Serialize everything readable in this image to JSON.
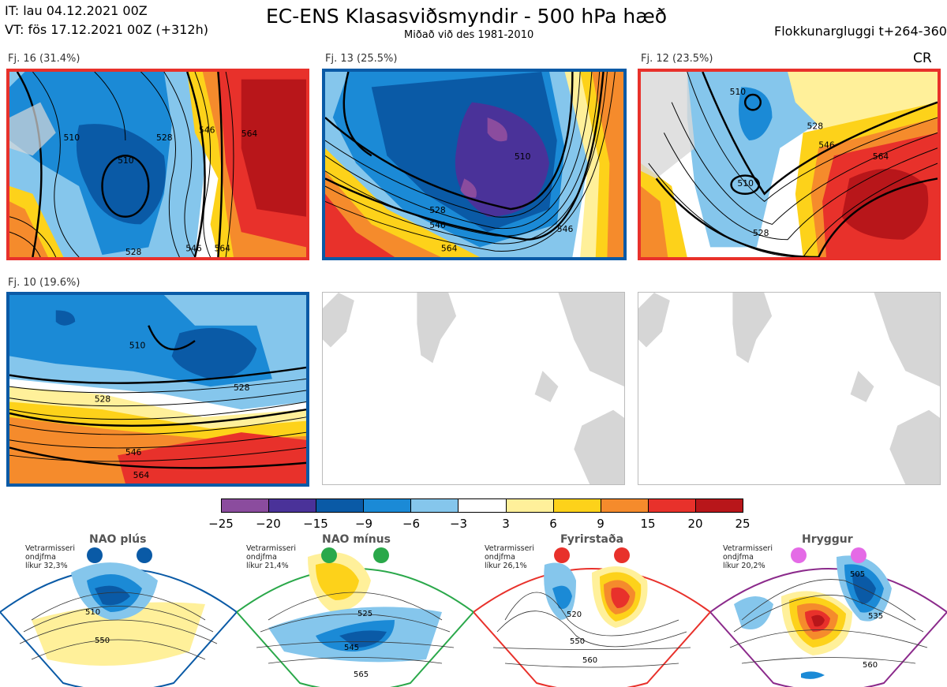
{
  "header": {
    "it_line": "IT: lau 04.12.2021 00Z",
    "vt_line": "VT: fös 17.12.2021 00Z  (+312h)",
    "title": "EC-ENS Klasasviðsmyndir - 500 hPa hæð",
    "subtitle": "Miðað við des 1981-2010",
    "window": "Flokkunargluggi t+264-360",
    "corner_code": "CR"
  },
  "maps": [
    {
      "label": "Fj. 16 (31.4%)",
      "border": "#e8312b"
    },
    {
      "label": "Fj. 13 (25.5%)",
      "border": "#0a5aa6"
    },
    {
      "label": "Fj. 12 (23.5%)",
      "border": "#e8312b"
    },
    {
      "label": "Fj. 10 (19.6%)",
      "border": "#0a5aa6"
    }
  ],
  "contour_labels": {
    "map1": [
      "510",
      "528",
      "546",
      "564",
      "510",
      "528",
      "546",
      "564"
    ],
    "map2": [
      "510",
      "528",
      "546",
      "564",
      "546"
    ],
    "map3": [
      "510",
      "528",
      "546",
      "564",
      "528",
      "510"
    ],
    "map4": [
      "510",
      "528",
      "546",
      "564",
      "528"
    ]
  },
  "legend": {
    "colors": [
      "#8b4c9e",
      "#4a3299",
      "#0a5aa6",
      "#1b8ad6",
      "#85c6ec",
      "#ffffff",
      "#fff09a",
      "#fdd21a",
      "#f58b2c",
      "#e8312b",
      "#b8161a"
    ],
    "ticks": [
      "−25",
      "−20",
      "−15",
      "−9",
      "−6",
      "−3",
      "3",
      "6",
      "9",
      "15",
      "20",
      "25"
    ]
  },
  "regimes": [
    {
      "title": "NAO plús",
      "note": [
        "Vetrarmisseri",
        "ondjfma",
        "líkur 32,3%"
      ],
      "dot_color": "#0a5aa6",
      "border": "#0a5aa6",
      "labels": [
        "510",
        "550"
      ]
    },
    {
      "title": "NAO mínus",
      "note": [
        "Vetrarmisseri",
        "ondjfma",
        "líkur 21,4%"
      ],
      "dot_color": "#2aa84a",
      "border": "#2aa84a",
      "labels": [
        "525",
        "545",
        "565"
      ]
    },
    {
      "title": "Fyrirstaða",
      "note": [
        "Vetrarmisseri",
        "ondjfma",
        "líkur 26,1%"
      ],
      "dot_color": "#e8312b",
      "border": "#e8312b",
      "labels": [
        "520",
        "550",
        "560"
      ]
    },
    {
      "title": "Hryggur",
      "note": [
        "Vetrarmisseri",
        "ondjfma",
        "líkur 20,2%"
      ],
      "dot_color": "#e46be6",
      "border": "#8b2a8b",
      "labels": [
        "505",
        "535",
        "560"
      ]
    }
  ]
}
